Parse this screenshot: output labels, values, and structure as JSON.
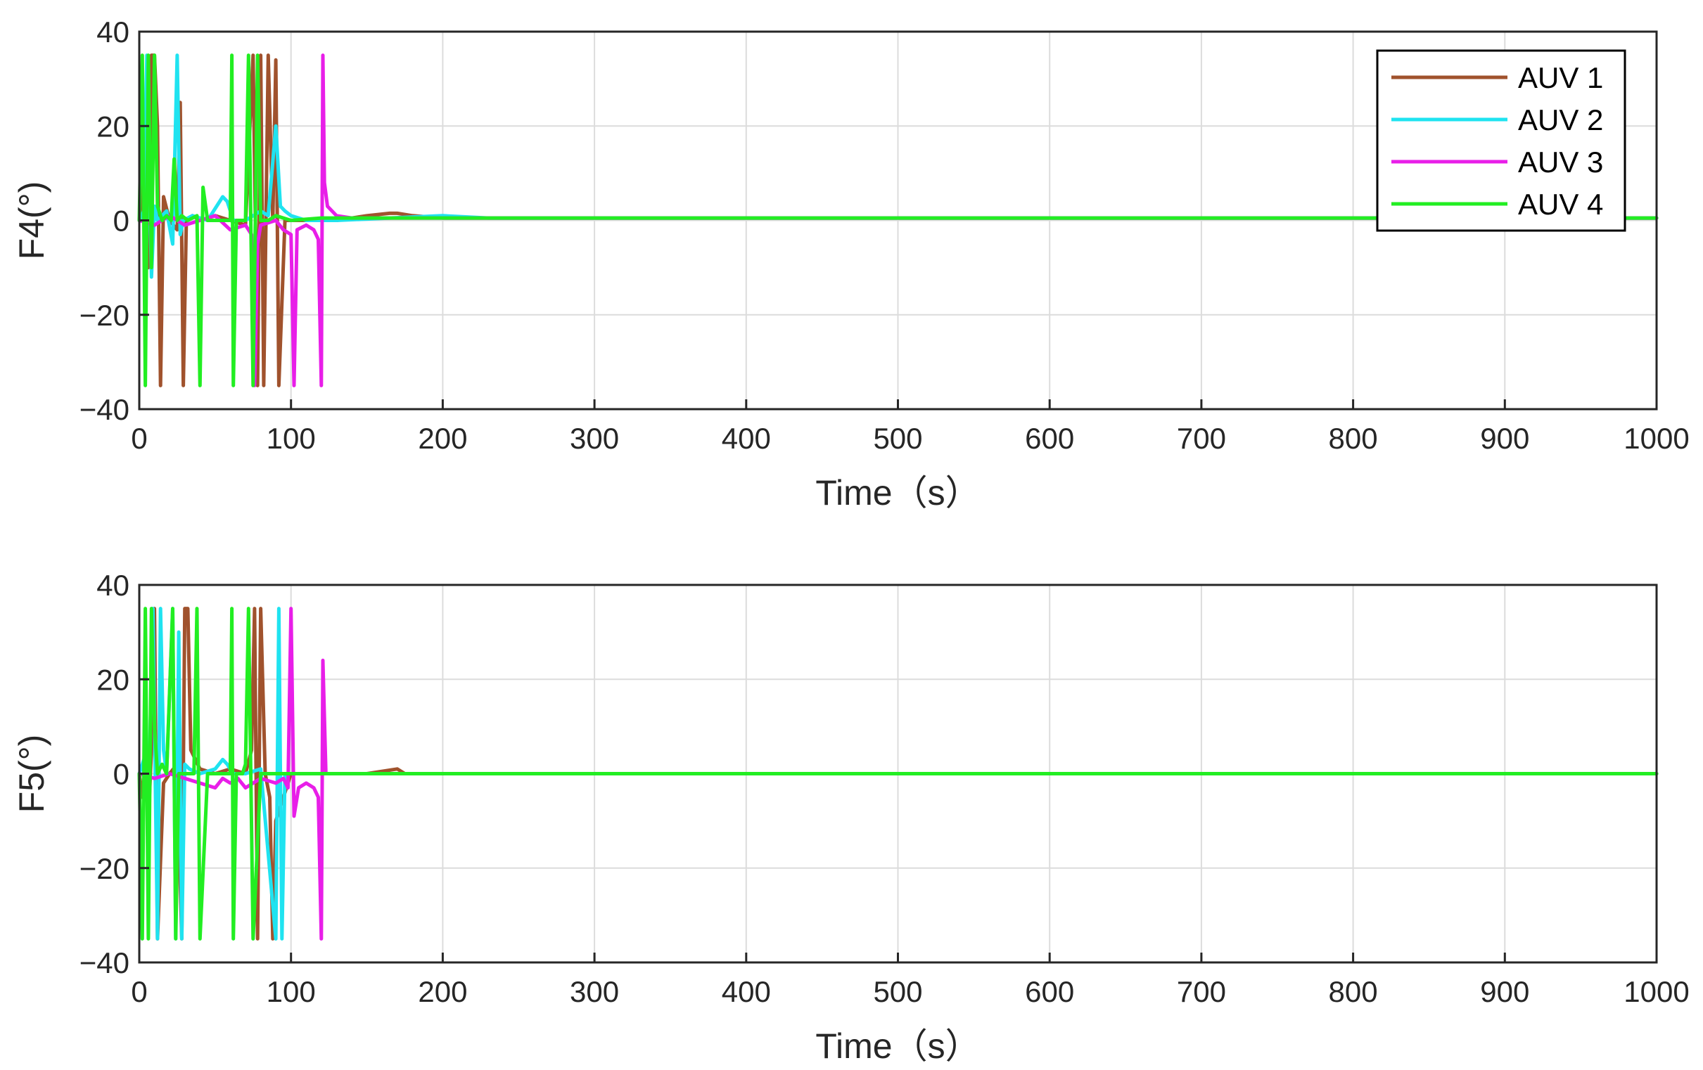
{
  "chart_data": [
    {
      "type": "line",
      "ylabel": "F4(°)",
      "xlabel": "Time（s）",
      "xlim": [
        0,
        1000
      ],
      "ylim": [
        -40,
        40
      ],
      "xticks": [
        "0",
        "100",
        "200",
        "300",
        "400",
        "500",
        "600",
        "700",
        "800",
        "900",
        "1000"
      ],
      "yticks": [
        "−40",
        "−20",
        "0",
        "20",
        "40"
      ],
      "grid": true,
      "legend": {
        "placement": "top-right",
        "entries": [
          "AUV 1",
          "AUV 2",
          "AUV 3",
          "AUV 4"
        ]
      },
      "series": [
        {
          "name": "AUV 1",
          "color": "#a0522d",
          "x": [
            0,
            3,
            6,
            8,
            10,
            12,
            14,
            16,
            20,
            25,
            27,
            29,
            31,
            35,
            40,
            50,
            60,
            70,
            75,
            78,
            80,
            82,
            85,
            88,
            90,
            92,
            96,
            100,
            110,
            120,
            130,
            150,
            165,
            170,
            180,
            200,
            250,
            300,
            1000
          ],
          "y": [
            0,
            10,
            -10,
            35,
            35,
            20,
            -35,
            5,
            0,
            -2,
            25,
            -35,
            0,
            1,
            0,
            1,
            0,
            -1,
            35,
            -35,
            35,
            -35,
            35,
            0,
            34,
            -35,
            0,
            0,
            0,
            0,
            0,
            1,
            1.5,
            1.5,
            1,
            0.5,
            0.5,
            0.5,
            0.5
          ]
        },
        {
          "name": "AUV 2",
          "color": "#1fe3f0",
          "x": [
            0,
            3,
            5,
            8,
            10,
            12,
            15,
            18,
            22,
            25,
            27,
            29,
            35,
            45,
            55,
            58,
            62,
            70,
            80,
            85,
            90,
            93,
            96,
            100,
            110,
            130,
            200,
            230,
            1000
          ],
          "y": [
            0,
            2,
            35,
            -12,
            3,
            0,
            1,
            2,
            -5,
            35,
            -3,
            0,
            1,
            0,
            5,
            4,
            0,
            0,
            2,
            1,
            20,
            3,
            2,
            1,
            0,
            0,
            1,
            0.5,
            0.5
          ]
        },
        {
          "name": "AUV 3",
          "color": "#e81ee8",
          "x": [
            0,
            10,
            20,
            30,
            40,
            50,
            60,
            70,
            74,
            76,
            78,
            80,
            90,
            95,
            100,
            102,
            104,
            110,
            115,
            118,
            120,
            121,
            122,
            124,
            130,
            140,
            1000
          ],
          "y": [
            0,
            -1,
            1,
            -1,
            0,
            1,
            -2,
            -1,
            -3,
            -35,
            -5,
            -1,
            0,
            -2,
            -3,
            -35,
            -2,
            -1,
            -2,
            -4,
            -35,
            35,
            8,
            3,
            1,
            0.5,
            0.5
          ]
        },
        {
          "name": "AUV 4",
          "color": "#22ee22",
          "x": [
            0,
            2,
            4,
            6,
            8,
            10,
            12,
            15,
            18,
            21,
            23,
            25,
            28,
            32,
            38,
            40,
            42,
            45,
            50,
            60,
            61,
            62,
            64,
            70,
            72,
            75,
            78,
            80,
            85,
            90,
            100,
            120,
            150,
            1000
          ],
          "y": [
            0,
            35,
            -35,
            35,
            -10,
            35,
            3,
            0,
            1,
            0,
            13,
            0,
            1,
            0,
            1,
            -35,
            7,
            0,
            0,
            0,
            35,
            -35,
            0,
            0,
            35,
            -35,
            35,
            0,
            0,
            1,
            0,
            0.5,
            0.5,
            0.5
          ]
        }
      ]
    },
    {
      "type": "line",
      "ylabel": "F5(°)",
      "xlabel": "Time（s）",
      "xlim": [
        0,
        1000
      ],
      "ylim": [
        -40,
        40
      ],
      "xticks": [
        "0",
        "100",
        "200",
        "300",
        "400",
        "500",
        "600",
        "700",
        "800",
        "900",
        "1000"
      ],
      "yticks": [
        "−40",
        "−20",
        "0",
        "20",
        "40"
      ],
      "grid": true,
      "series": [
        {
          "name": "AUV 1",
          "color": "#a0522d",
          "x": [
            0,
            2,
            4,
            6,
            8,
            10,
            12,
            16,
            20,
            25,
            28,
            30,
            32,
            34,
            40,
            50,
            60,
            70,
            74,
            76,
            78,
            80,
            83,
            86,
            88,
            90,
            100,
            150,
            170,
            175,
            180,
            1000
          ],
          "y": [
            0,
            -5,
            2,
            -10,
            5,
            35,
            -35,
            -2,
            0,
            2,
            -35,
            35,
            35,
            5,
            1,
            0,
            1,
            0,
            5,
            35,
            -35,
            35,
            0,
            -5,
            -35,
            -10,
            0,
            0,
            1,
            0,
            0,
            0
          ]
        },
        {
          "name": "AUV 2",
          "color": "#1fe3f0",
          "x": [
            0,
            3,
            6,
            9,
            12,
            14,
            16,
            18,
            22,
            24,
            26,
            28,
            30,
            33,
            40,
            50,
            55,
            58,
            62,
            70,
            80,
            90,
            92,
            94,
            96,
            100,
            120,
            150,
            1000
          ],
          "y": [
            0,
            3,
            -8,
            35,
            -35,
            35,
            5,
            0,
            35,
            -35,
            30,
            -35,
            2,
            1,
            0,
            1,
            3,
            2,
            0,
            0,
            1,
            -35,
            35,
            -35,
            0,
            0,
            0,
            0,
            0
          ]
        },
        {
          "name": "AUV 3",
          "color": "#e81ee8",
          "x": [
            0,
            10,
            20,
            30,
            40,
            50,
            55,
            60,
            65,
            70,
            80,
            90,
            95,
            98,
            100,
            102,
            105,
            110,
            115,
            118,
            120,
            121,
            123,
            130,
            1000
          ],
          "y": [
            0,
            -1,
            0,
            -1,
            -2,
            -3,
            -1,
            -2,
            -1,
            -3,
            -1,
            -2,
            -1,
            -3,
            35,
            -9,
            -3,
            -2,
            -3,
            -5,
            -35,
            24,
            0,
            0,
            0
          ]
        },
        {
          "name": "AUV 4",
          "color": "#22ee22",
          "x": [
            0,
            2,
            4,
            6,
            8,
            10,
            12,
            15,
            18,
            22,
            24,
            26,
            30,
            36,
            38,
            40,
            45,
            55,
            60,
            61,
            62,
            64,
            68,
            70,
            72,
            75,
            80,
            90,
            100,
            1000
          ],
          "y": [
            0,
            -35,
            35,
            -35,
            35,
            10,
            0,
            2,
            0,
            35,
            -35,
            0,
            0,
            0,
            35,
            -35,
            0,
            0,
            0,
            35,
            -35,
            0,
            0,
            2,
            35,
            -35,
            0,
            0,
            0,
            0
          ]
        }
      ]
    }
  ]
}
